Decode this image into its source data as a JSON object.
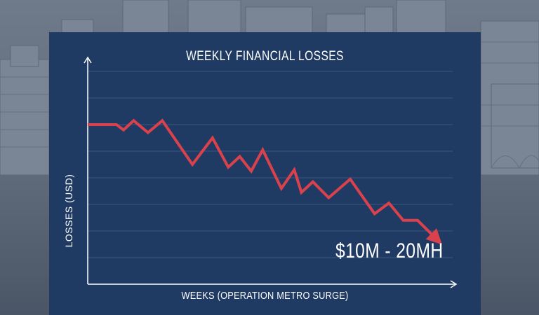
{
  "chart_data": {
    "type": "line",
    "title": "WEEKLY FINANCIAL LOSSES",
    "xlabel": "WEEKS (OPERATION METRO SURGE)",
    "ylabel": "LOSSES (USD)",
    "annotation": "$10M - 20MH",
    "grid": true,
    "legend": "none",
    "xlim": [
      0,
      25.2
    ],
    "ylim": [
      0,
      8
    ],
    "series": [
      {
        "color": "#d9424c",
        "x": [
          0,
          2,
          2.5,
          3.2,
          4.2,
          5.2,
          7.3,
          8.7,
          9.8,
          10.6,
          11.4,
          12.2,
          13.5,
          14.4,
          14.9,
          15.7,
          16.8,
          18.3,
          20,
          21,
          22,
          23,
          24.5
        ],
        "y": [
          6,
          6,
          5.8,
          6.15,
          5.7,
          6.15,
          4.5,
          5.5,
          4.4,
          4.8,
          4.25,
          5.05,
          3.6,
          4.3,
          3.45,
          3.85,
          3.25,
          3.95,
          2.65,
          3.05,
          2.4,
          2.4,
          1.6
        ]
      }
    ]
  }
}
